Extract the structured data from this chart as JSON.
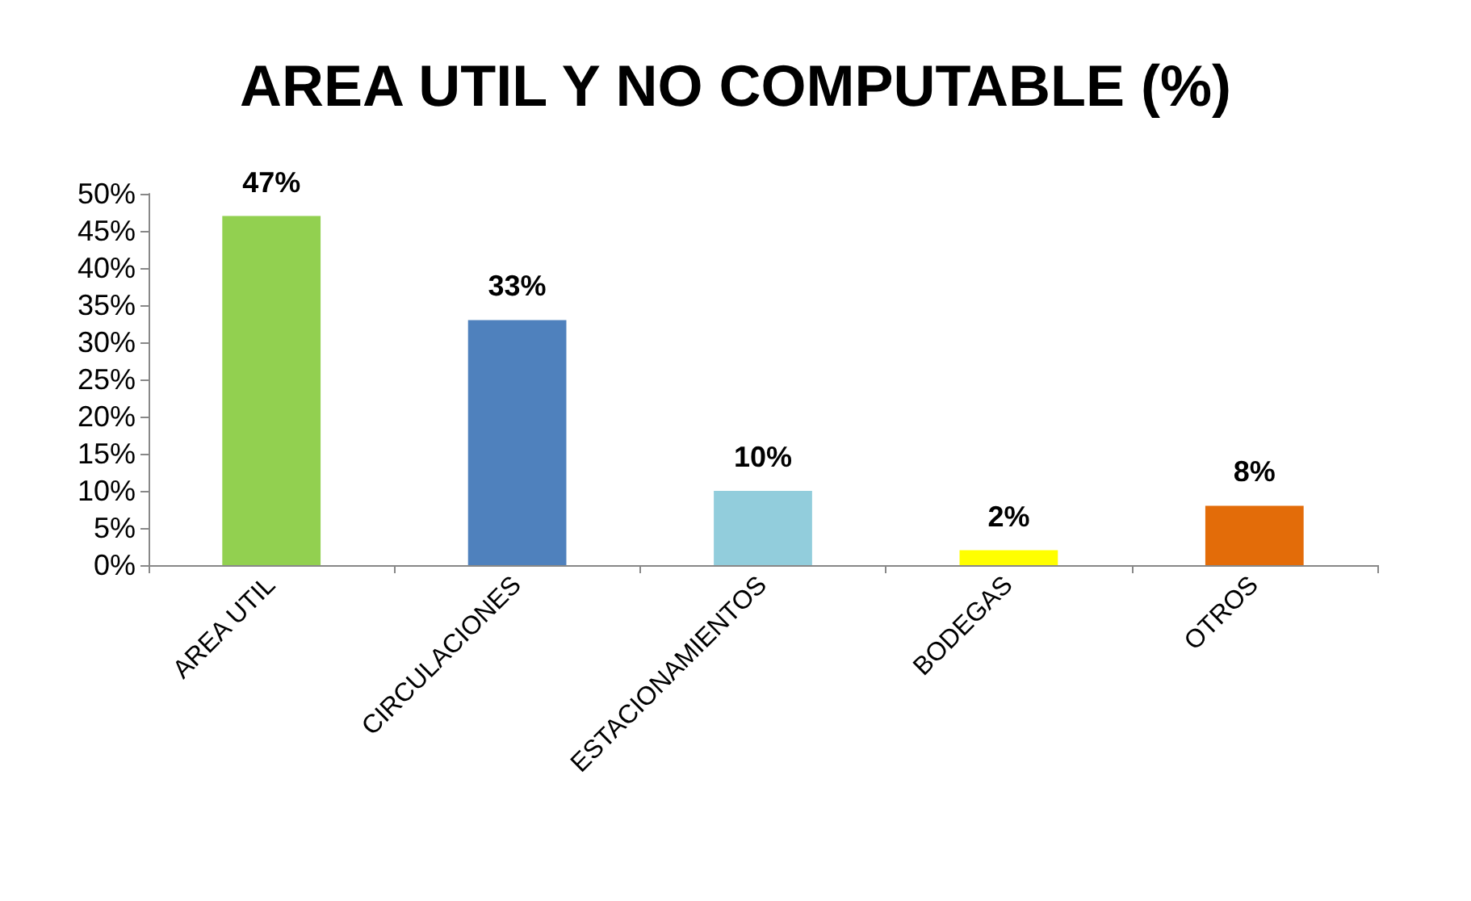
{
  "chart_data": {
    "type": "bar",
    "title": "AREA UTIL Y NO COMPUTABLE (%)",
    "categories": [
      "AREA UTIL",
      "CIRCULACIONES",
      "ESTACIONAMIENTOS",
      "BODEGAS",
      "OTROS"
    ],
    "values": [
      47,
      33,
      10,
      2,
      8
    ],
    "colors": [
      "#92d050",
      "#4f81bd",
      "#92cddc",
      "#ffff00",
      "#e36c09"
    ],
    "value_labels": [
      "47%",
      "33%",
      "10%",
      "2%",
      "8%"
    ],
    "ylim": [
      0,
      50
    ],
    "yticks": [
      {
        "value": 0,
        "label": "0%"
      },
      {
        "value": 5,
        "label": "5%"
      },
      {
        "value": 10,
        "label": "10%"
      },
      {
        "value": 15,
        "label": "15%"
      },
      {
        "value": 20,
        "label": "20%"
      },
      {
        "value": 25,
        "label": "25%"
      },
      {
        "value": 30,
        "label": "30%"
      },
      {
        "value": 35,
        "label": "35%"
      },
      {
        "value": 40,
        "label": "40%"
      },
      {
        "value": 45,
        "label": "45%"
      },
      {
        "value": 50,
        "label": "50%"
      }
    ],
    "grid": false
  }
}
